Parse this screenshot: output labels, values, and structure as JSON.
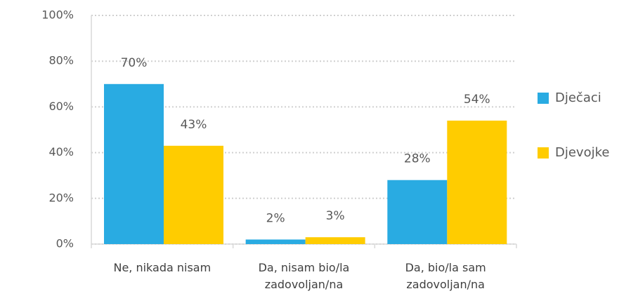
{
  "chart_data": {
    "type": "bar",
    "categories": [
      "Ne, nikada nisam",
      "Da, nisam bio/la zadovoljan/na",
      "Da, bio/la sam zadovoljan/na"
    ],
    "series": [
      {
        "name": "Dječaci",
        "color": "#29abe2",
        "values": [
          70,
          2,
          28
        ],
        "value_labels": [
          "70%",
          "2%",
          "28%"
        ]
      },
      {
        "name": "Djevojke",
        "color": "#ffcc00",
        "values": [
          43,
          3,
          54
        ],
        "value_labels": [
          "43%",
          "3%",
          "54%"
        ]
      }
    ],
    "ylim": [
      0,
      100
    ],
    "yticks": [
      {
        "value": 0,
        "label": "0%"
      },
      {
        "value": 20,
        "label": "20%"
      },
      {
        "value": 40,
        "label": "40%"
      },
      {
        "value": 60,
        "label": "60%"
      },
      {
        "value": 80,
        "label": "80%"
      },
      {
        "value": 100,
        "label": "100%"
      }
    ],
    "grid": true,
    "legend": "right"
  }
}
